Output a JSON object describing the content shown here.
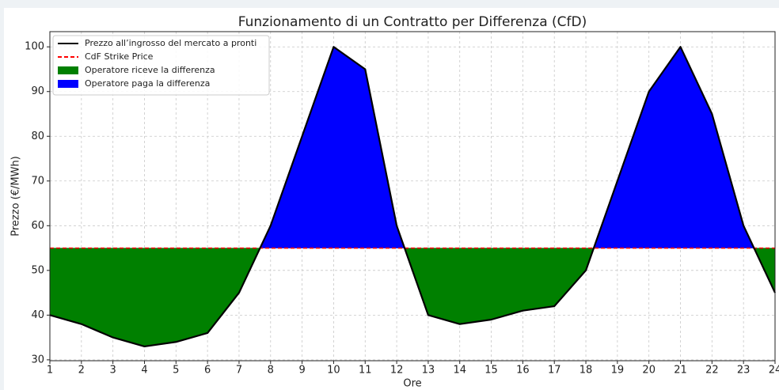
{
  "chart_data": {
    "type": "line",
    "title": "Funzionamento di un Contratto per Differenza (CfD)",
    "x_label": "Ore",
    "y_label": "Prezzo (€/MWh)",
    "x": [
      1,
      2,
      3,
      4,
      5,
      6,
      7,
      8,
      9,
      10,
      11,
      12,
      13,
      14,
      15,
      16,
      17,
      18,
      19,
      20,
      21,
      22,
      23,
      24
    ],
    "series": [
      {
        "name": "Prezzo all’ingrosso del mercato a pronti",
        "color": "#000000",
        "values": [
          40,
          38,
          35,
          33,
          34,
          36,
          45,
          60,
          80,
          100,
          95,
          60,
          40,
          38,
          39,
          41,
          42,
          50,
          70,
          90,
          100,
          85,
          60,
          45
        ]
      }
    ],
    "strike": {
      "name": "CdF Strike Price",
      "color": "#ff0000",
      "value": 55
    },
    "fills": [
      {
        "name": "Operatore riceve la differenza",
        "color": "#008000",
        "where": "below"
      },
      {
        "name": "Operatore paga la differenza",
        "color": "#0000ff",
        "where": "above"
      }
    ],
    "xlim": [
      1,
      24
    ],
    "xticks": [
      1,
      2,
      3,
      4,
      5,
      6,
      7,
      8,
      9,
      10,
      11,
      12,
      13,
      14,
      15,
      16,
      17,
      18,
      19,
      20,
      21,
      22,
      23,
      24
    ],
    "ylim": [
      29.8,
      103.4
    ],
    "yticks": [
      30,
      40,
      50,
      60,
      70,
      80,
      90,
      100
    ],
    "grid": true,
    "legend": "upper left"
  }
}
